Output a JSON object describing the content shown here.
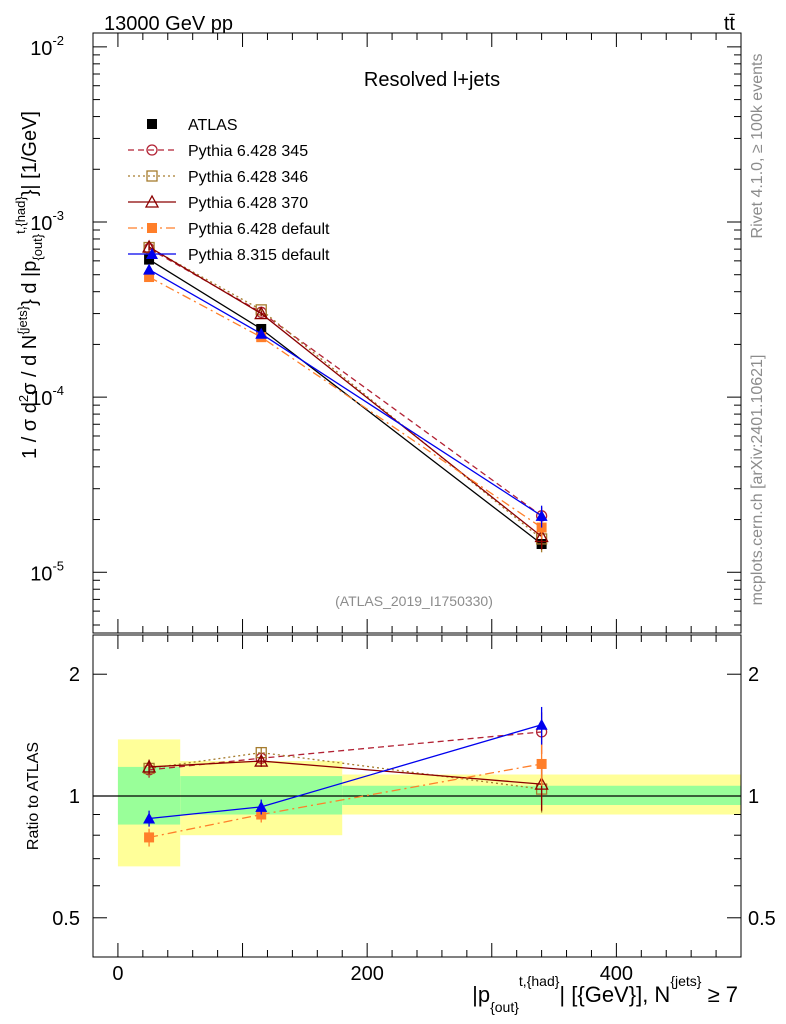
{
  "header": {
    "left_title": "13000 GeV pp",
    "right_title": "tt̄",
    "plot_label": "Resolved l+jets",
    "analysis_id": "(ATLAS_2019_I1750330)",
    "side_rivet": "Rivet 4.1.0, ≥ 100k events",
    "side_mcplots": "mcplots.cern.ch [arXiv:2401.10621]"
  },
  "colors": {
    "band_inner": "#99ff99",
    "band_outer": "#ffff99",
    "pythia6_345": "#b22234",
    "pythia6_346": "#a67c2e",
    "pythia6_370": "#8b0000",
    "pythia6_default": "#ff7f2a",
    "pythia8_default": "#0000ee",
    "atlas": "#000000"
  },
  "chart_data": [
    {
      "type": "line",
      "panel": "main",
      "title": "Resolved l+jets",
      "xlabel_parts": {
        "p": "|p",
        "sub": "{out}",
        "sup": "t,{had}",
        "rest": "| [{GeV}], N",
        "sup2": "{jets}",
        "tail": " ≥ 7"
      },
      "ylabel_parts": {
        "a": "1 / σ d",
        "b": "2",
        "c": "σ / d N",
        "d": "{jets}",
        "e": "} d |p",
        "f": "{out}",
        "g": "t,{had}",
        "h": "}| [1/GeV]"
      },
      "yscale": "log",
      "xlim": [
        -20,
        500
      ],
      "ylim": [
        4.5e-06,
        0.012
      ],
      "ytick_labels": [
        {
          "base": "10",
          "exp": "-2",
          "value": 0.01
        },
        {
          "base": "10",
          "exp": "-3",
          "value": 0.001
        },
        {
          "base": "10",
          "exp": "-4",
          "value": 0.0001
        },
        {
          "base": "10",
          "exp": "-5",
          "value": 1e-05
        }
      ],
      "bins": [
        [
          0,
          50
        ],
        [
          50,
          180
        ],
        [
          180,
          500
        ]
      ],
      "x": [
        25,
        115,
        340
      ],
      "series": [
        {
          "name": "ATLAS",
          "key": "atlas",
          "values": [
            0.00061,
            0.000245,
            1.45e-05
          ],
          "errors": [
            3e-05,
            1e-05,
            1e-06
          ]
        },
        {
          "name": "Pythia 6.428 345",
          "key": "p345",
          "values": [
            0.000705,
            0.000305,
            2.1e-05
          ],
          "errors": [
            3e-05,
            1e-05,
            2.5e-06
          ]
        },
        {
          "name": "Pythia 6.428 346",
          "key": "p346",
          "values": [
            0.000715,
            0.000315,
            1.55e-05
          ],
          "errors": [
            3e-05,
            1e-05,
            2.5e-06
          ]
        },
        {
          "name": "Pythia 6.428 370",
          "key": "p370",
          "values": [
            0.00072,
            0.0003,
            1.6e-05
          ],
          "errors": [
            3e-05,
            1e-05,
            2.5e-06
          ]
        },
        {
          "name": "Pythia 6.428 default",
          "key": "p6def",
          "values": [
            0.000485,
            0.00022,
            1.8e-05
          ],
          "errors": [
            2e-05,
            1e-05,
            2.5e-06
          ]
        },
        {
          "name": "Pythia 8.315 default",
          "key": "p8def",
          "values": [
            0.000535,
            0.00023,
            2.1e-05
          ],
          "errors": [
            2e-05,
            1e-05,
            3e-06
          ]
        }
      ]
    },
    {
      "type": "line",
      "panel": "ratio",
      "ylabel": "Ratio to ATLAS",
      "yscale": "log",
      "xlim": [
        -20,
        500
      ],
      "ylim": [
        0.4,
        2.5
      ],
      "xtick_labels": [
        "0",
        "200",
        "400"
      ],
      "xtick_values": [
        0,
        200,
        400
      ],
      "ytick_labels": [
        "0.5",
        "1",
        "2"
      ],
      "ytick_values": [
        0.5,
        1,
        2
      ],
      "bands": [
        {
          "x": [
            0,
            50
          ],
          "inner": [
            0.85,
            1.18
          ],
          "outer": [
            0.67,
            1.38
          ]
        },
        {
          "x": [
            50,
            180
          ],
          "inner": [
            0.9,
            1.12
          ],
          "outer": [
            0.8,
            1.22
          ]
        },
        {
          "x": [
            180,
            500
          ],
          "inner": [
            0.95,
            1.06
          ],
          "outer": [
            0.9,
            1.13
          ]
        }
      ],
      "x": [
        25,
        115,
        340
      ],
      "series": [
        {
          "name": "Pythia 6.428 345",
          "key": "p345",
          "values": [
            1.16,
            1.24,
            1.44
          ],
          "errors": [
            0.05,
            0.04,
            0.17
          ]
        },
        {
          "name": "Pythia 6.428 346",
          "key": "p346",
          "values": [
            1.17,
            1.28,
            1.04
          ],
          "errors": [
            0.05,
            0.04,
            0.13
          ]
        },
        {
          "name": "Pythia 6.428 370",
          "key": "p370",
          "values": [
            1.18,
            1.22,
            1.07
          ],
          "errors": [
            0.05,
            0.04,
            0.15
          ]
        },
        {
          "name": "Pythia 6.428 default",
          "key": "p6def",
          "values": [
            0.79,
            0.9,
            1.2
          ],
          "errors": [
            0.04,
            0.04,
            0.14
          ]
        },
        {
          "name": "Pythia 8.315 default",
          "key": "p8def",
          "values": [
            0.88,
            0.94,
            1.5
          ],
          "errors": [
            0.04,
            0.04,
            0.16
          ]
        }
      ]
    }
  ]
}
